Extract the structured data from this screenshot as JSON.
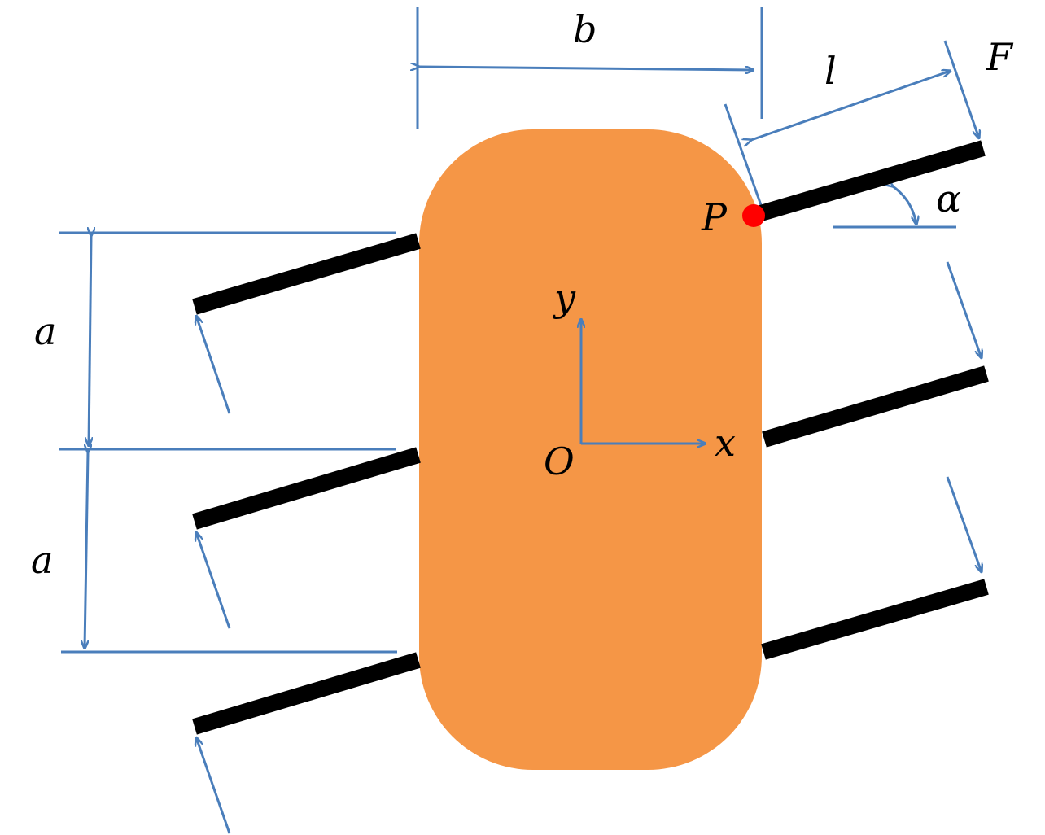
{
  "labels": {
    "b": "b",
    "l": "l",
    "F": "F",
    "alpha": "α",
    "P": "P",
    "y": "y",
    "x": "x",
    "O": "O",
    "a_upper": "a",
    "a_lower": "a"
  },
  "colors": {
    "body": "#f59646",
    "dimension": "#4a7ebb",
    "bar": "#000000",
    "point": "#ff0000"
  }
}
